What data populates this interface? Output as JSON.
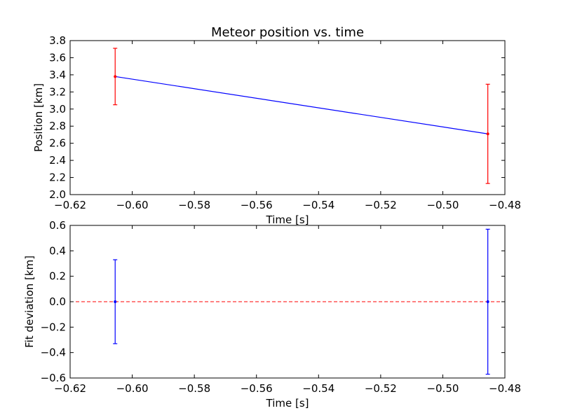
{
  "chart_data": [
    {
      "type": "line",
      "title": "Meteor position vs. time",
      "xlabel": "Time [s]",
      "ylabel": "Position [km]",
      "xlim": [
        -0.62,
        -0.48
      ],
      "ylim": [
        2.0,
        3.8
      ],
      "xticks": [
        -0.62,
        -0.6,
        -0.58,
        -0.56,
        -0.54,
        -0.52,
        -0.5,
        -0.48
      ],
      "xtick_labels": [
        "−0.62",
        "−0.60",
        "−0.58",
        "−0.56",
        "−0.54",
        "−0.52",
        "−0.50",
        "−0.48"
      ],
      "yticks": [
        2.0,
        2.2,
        2.4,
        2.6,
        2.8,
        3.0,
        3.2,
        3.4,
        3.6,
        3.8
      ],
      "ytick_labels": [
        "2.0",
        "2.2",
        "2.4",
        "2.6",
        "2.8",
        "3.0",
        "3.2",
        "3.4",
        "3.6",
        "3.8"
      ],
      "grid": false,
      "series": [
        {
          "kind": "fit-line",
          "color": "#0000ff",
          "x": [
            -0.6055,
            -0.4855
          ],
          "y": [
            3.38,
            2.71
          ]
        },
        {
          "kind": "errorbar",
          "color": "#ff0000",
          "x": [
            -0.6055,
            -0.4855
          ],
          "y": [
            3.38,
            2.71
          ],
          "yerr": [
            0.33,
            0.58
          ]
        }
      ]
    },
    {
      "type": "line",
      "title": "",
      "xlabel": "Time [s]",
      "ylabel": "Fit deviation [km]",
      "xlim": [
        -0.62,
        -0.48
      ],
      "ylim": [
        -0.6,
        0.6
      ],
      "xticks": [
        -0.62,
        -0.6,
        -0.58,
        -0.56,
        -0.54,
        -0.52,
        -0.5,
        -0.48
      ],
      "xtick_labels": [
        "−0.62",
        "−0.60",
        "−0.58",
        "−0.56",
        "−0.54",
        "−0.52",
        "−0.50",
        "−0.48"
      ],
      "yticks": [
        -0.6,
        -0.4,
        -0.2,
        0.0,
        0.2,
        0.4,
        0.6
      ],
      "ytick_labels": [
        "−0.6",
        "−0.4",
        "−0.2",
        "0.0",
        "0.2",
        "0.4",
        "0.6"
      ],
      "grid": false,
      "zero_line_color": "#ff0000",
      "series": [
        {
          "kind": "errorbar",
          "color": "#0000ff",
          "x": [
            -0.6055,
            -0.4855
          ],
          "y": [
            0.0,
            0.0
          ],
          "yerr": [
            0.33,
            0.57
          ]
        }
      ]
    }
  ]
}
